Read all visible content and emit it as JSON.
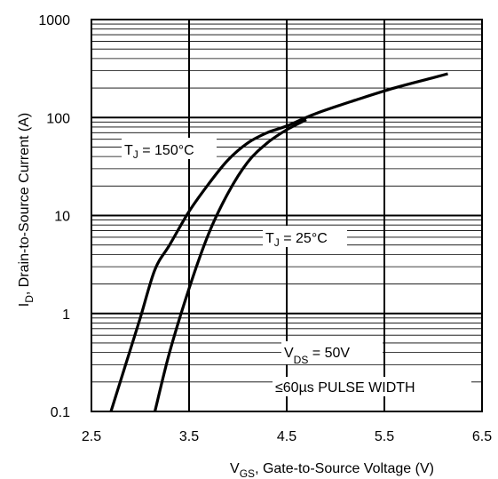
{
  "chart_data": {
    "type": "line",
    "title": "",
    "x_axis": {
      "label_main": "V",
      "label_sub": "GS",
      "label_rest": ", Gate-to-Source Voltage (V)",
      "range": [
        2.5,
        6.5
      ],
      "ticks": [
        "2.5",
        "3.5",
        "4.5",
        "5.5",
        "6.5"
      ]
    },
    "y_axis": {
      "label_main": "I",
      "label_sub": "D",
      "label_rest": ", Drain-to-Source Current (A)",
      "scale": "log",
      "range": [
        0.1,
        1000
      ],
      "ticks": [
        "0.1",
        "1",
        "10",
        "100",
        "1000"
      ]
    },
    "grid": "on (log minor lines)",
    "series": [
      {
        "name": "TJ = 150°C",
        "x": [
          2.7,
          2.85,
          3.0,
          3.15,
          3.3,
          3.5,
          3.7,
          3.9,
          4.1,
          4.3,
          4.5,
          4.8,
          5.2,
          5.6,
          6.0,
          6.15
        ],
        "y": [
          0.1,
          0.3,
          0.9,
          2.8,
          5.0,
          11,
          21,
          37,
          55,
          70,
          82,
          110,
          150,
          200,
          255,
          280
        ]
      },
      {
        "name": "TJ = 25°C",
        "x": [
          3.15,
          3.3,
          3.5,
          3.7,
          3.9,
          4.1,
          4.3,
          4.5,
          4.7
        ],
        "y": [
          0.1,
          0.4,
          1.8,
          6.5,
          17,
          35,
          55,
          75,
          95
        ]
      }
    ],
    "annotations": [
      {
        "main": "T",
        "sub": "J",
        "rest": " = 150°C"
      },
      {
        "main": "T",
        "sub": "J",
        "rest": " = 25°C"
      },
      {
        "main": "V",
        "sub": "DS",
        "rest": " = 50V"
      },
      {
        "text": "≤60µs PULSE WIDTH"
      }
    ]
  }
}
